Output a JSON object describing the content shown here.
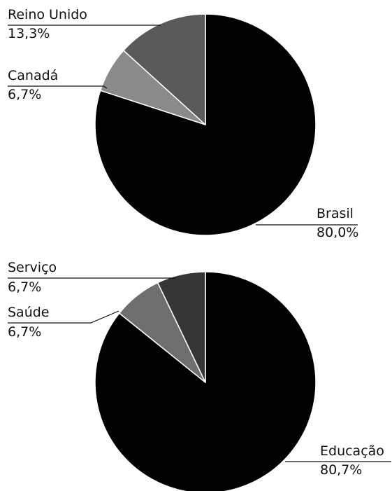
{
  "chart_data": [
    {
      "type": "pie",
      "slices": [
        {
          "label": "Brasil",
          "value_label": "80,0%",
          "value": 80.0,
          "color": "#000000"
        },
        {
          "label": "Canadá",
          "value_label": "6,7%",
          "value": 6.7,
          "color": "#8a8a8a"
        },
        {
          "label": "Reino Unido",
          "value_label": "13,3%",
          "value": 13.3,
          "color": "#5a5a5a"
        }
      ]
    },
    {
      "type": "pie",
      "slices": [
        {
          "label": "Educação",
          "value_label": "80,7%",
          "value": 80.7,
          "color": "#000000"
        },
        {
          "label": "Saúde",
          "value_label": "6,7%",
          "value": 6.7,
          "color": "#6e6e6e"
        },
        {
          "label": "Serviço",
          "value_label": "6,7%",
          "value": 6.7,
          "color": "#363636"
        }
      ]
    }
  ]
}
